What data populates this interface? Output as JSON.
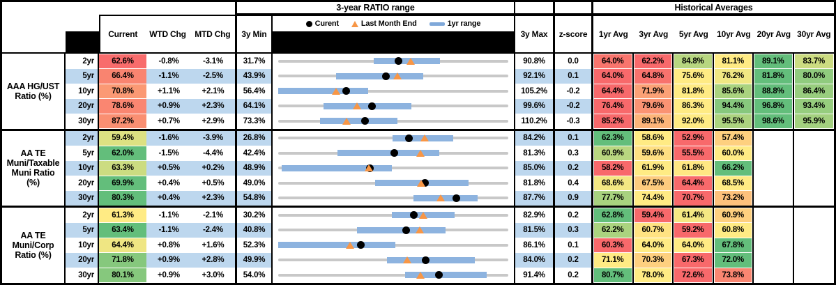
{
  "header": {
    "ratio_range_title": "3-year RATIO range",
    "historical_title": "Historical Averages",
    "col_current": "Current",
    "col_wtd": "WTD Chg",
    "col_mtd": "MTD Chg",
    "col_min": "3y Min",
    "col_max": "3y Max",
    "col_z": "z-score",
    "avg_cols": [
      "1yr Avg",
      "3yr Avg",
      "5yr Avg",
      "10yr Avg",
      "20yr Avg",
      "30yr Avg"
    ],
    "legend_current": "Curent",
    "legend_last_month": "Last Month End",
    "legend_range": "1yr range"
  },
  "colors": {
    "heat_low": "#F8696B",
    "heat_mid": "#FFEB84",
    "heat_high": "#63BE7B",
    "stripe": "#BDD7EE",
    "range_bar": "#8DB3DF",
    "range_line": "#C8C8C8",
    "dot": "#000000",
    "triangle": "#F79646"
  },
  "groups": [
    {
      "name": "AAA HG/UST Ratio (%)",
      "label_lines": [
        "AAA HG/UST",
        "Ratio (%)"
      ]
    },
    {
      "name": "AA TE Muni/Taxable Muni Ratio (%)",
      "label_lines": [
        "AA TE",
        "Muni/Taxable",
        "Muni Ratio",
        "(%)"
      ]
    },
    {
      "name": "AA TE Muni/Corp Ratio (%)",
      "label_lines": [
        "AA TE",
        "Muni/Corp",
        "Ratio (%)"
      ]
    }
  ],
  "chart_data": {
    "type": "dot-range",
    "title": "3-year RATIO range",
    "legend": [
      "Curent",
      "Last Month End",
      "1yr range"
    ],
    "note": "Each row plots current value (dot), last month end (triangle, = current - MTD chg) and 1yr range (bar) on a line spanning 3y Min to 3y Max; all values in percent.",
    "rows": [
      {
        "group": 0,
        "tenor": "2yr",
        "current": 62.6,
        "wtd_chg": "-0.8%",
        "mtd_chg": "-3.1%",
        "min_3y": 31.7,
        "max_3y": 90.8,
        "z_score": "0.0",
        "range_1yr": [
          56.3,
          73.2
        ],
        "averages": [
          64.0,
          62.2,
          84.8,
          81.1,
          89.1,
          83.7
        ]
      },
      {
        "group": 0,
        "tenor": "5yr",
        "current": 66.4,
        "wtd_chg": "-1.1%",
        "mtd_chg": "-2.5%",
        "min_3y": 43.9,
        "max_3y": 92.1,
        "z_score": "0.1",
        "range_1yr": [
          56.0,
          74.3
        ],
        "averages": [
          64.0,
          64.8,
          75.6,
          76.2,
          81.8,
          80.0
        ]
      },
      {
        "group": 0,
        "tenor": "10yr",
        "current": 70.8,
        "wtd_chg": "+1.1%",
        "mtd_chg": "+2.1%",
        "min_3y": 56.4,
        "max_3y": 105.2,
        "z_score": "-0.2",
        "range_1yr": [
          56.4,
          75.5
        ],
        "averages": [
          64.4,
          71.9,
          81.8,
          85.6,
          88.8,
          86.4
        ]
      },
      {
        "group": 0,
        "tenor": "20yr",
        "current": 78.6,
        "wtd_chg": "+0.9%",
        "mtd_chg": "+2.3%",
        "min_3y": 64.1,
        "max_3y": 99.6,
        "z_score": "-0.2",
        "range_1yr": [
          71.1,
          84.6
        ],
        "averages": [
          76.4,
          79.6,
          86.3,
          94.4,
          96.8,
          93.4
        ]
      },
      {
        "group": 0,
        "tenor": "30yr",
        "current": 87.2,
        "wtd_chg": "+0.7%",
        "mtd_chg": "+2.9%",
        "min_3y": 73.3,
        "max_3y": 110.2,
        "z_score": "-0.3",
        "range_1yr": [
          80.0,
          92.4
        ],
        "averages": [
          85.2,
          89.1,
          92.0,
          95.5,
          98.6,
          95.9
        ]
      },
      {
        "group": 1,
        "tenor": "2yr",
        "current": 59.4,
        "wtd_chg": "-1.6%",
        "mtd_chg": "-3.9%",
        "min_3y": 26.8,
        "max_3y": 84.2,
        "z_score": "0.1",
        "range_1yr": [
          55.3,
          70.4
        ],
        "averages": [
          62.3,
          58.6,
          52.9,
          57.4,
          null,
          null
        ]
      },
      {
        "group": 1,
        "tenor": "5yr",
        "current": 62.0,
        "wtd_chg": "-1.5%",
        "mtd_chg": "-4.4%",
        "min_3y": 42.4,
        "max_3y": 81.3,
        "z_score": "0.3",
        "range_1yr": [
          52.4,
          69.6
        ],
        "averages": [
          60.9,
          59.6,
          55.5,
          60.0,
          null,
          null
        ]
      },
      {
        "group": 1,
        "tenor": "10yr",
        "current": 63.3,
        "wtd_chg": "+0.5%",
        "mtd_chg": "+0.2%",
        "min_3y": 48.9,
        "max_3y": 85.0,
        "z_score": "0.2",
        "range_1yr": [
          49.4,
          66.7
        ],
        "averages": [
          58.2,
          61.9,
          61.8,
          66.2,
          null,
          null
        ]
      },
      {
        "group": 1,
        "tenor": "20yr",
        "current": 69.9,
        "wtd_chg": "+0.4%",
        "mtd_chg": "+0.5%",
        "min_3y": 49.0,
        "max_3y": 81.8,
        "z_score": "0.4",
        "range_1yr": [
          62.8,
          76.1
        ],
        "averages": [
          68.6,
          67.5,
          64.4,
          68.5,
          null,
          null
        ]
      },
      {
        "group": 1,
        "tenor": "30yr",
        "current": 80.3,
        "wtd_chg": "+0.4%",
        "mtd_chg": "+2.3%",
        "min_3y": 54.8,
        "max_3y": 87.7,
        "z_score": "0.9",
        "range_1yr": [
          74.1,
          83.3
        ],
        "averages": [
          77.7,
          74.4,
          70.7,
          73.2,
          null,
          null
        ]
      },
      {
        "group": 2,
        "tenor": "2yr",
        "current": 61.3,
        "wtd_chg": "-1.1%",
        "mtd_chg": "-2.1%",
        "min_3y": 30.2,
        "max_3y": 82.9,
        "z_score": "0.2",
        "range_1yr": [
          56.3,
          70.6
        ],
        "averages": [
          62.8,
          59.4,
          61.4,
          60.9,
          null,
          null
        ]
      },
      {
        "group": 2,
        "tenor": "5yr",
        "current": 63.4,
        "wtd_chg": "-1.1%",
        "mtd_chg": "-2.4%",
        "min_3y": 40.8,
        "max_3y": 81.5,
        "z_score": "0.3",
        "range_1yr": [
          54.7,
          70.4
        ],
        "averages": [
          62.2,
          60.7,
          59.2,
          60.8,
          null,
          null
        ]
      },
      {
        "group": 2,
        "tenor": "10yr",
        "current": 64.4,
        "wtd_chg": "+0.8%",
        "mtd_chg": "+1.6%",
        "min_3y": 52.3,
        "max_3y": 86.1,
        "z_score": "0.1",
        "range_1yr": [
          52.3,
          69.5
        ],
        "averages": [
          60.3,
          64.0,
          64.0,
          67.8,
          null,
          null
        ]
      },
      {
        "group": 2,
        "tenor": "20yr",
        "current": 71.8,
        "wtd_chg": "+0.9%",
        "mtd_chg": "+2.8%",
        "min_3y": 49.9,
        "max_3y": 84.0,
        "z_score": "0.2",
        "range_1yr": [
          66.0,
          79.0
        ],
        "averages": [
          71.1,
          70.3,
          67.3,
          72.0,
          null,
          null
        ]
      },
      {
        "group": 2,
        "tenor": "30yr",
        "current": 80.1,
        "wtd_chg": "+0.9%",
        "mtd_chg": "+3.0%",
        "min_3y": 54.0,
        "max_3y": 91.4,
        "z_score": "0.2",
        "range_1yr": [
          74.6,
          87.9
        ],
        "averages": [
          80.7,
          78.0,
          72.6,
          73.8,
          null,
          null
        ]
      }
    ]
  }
}
